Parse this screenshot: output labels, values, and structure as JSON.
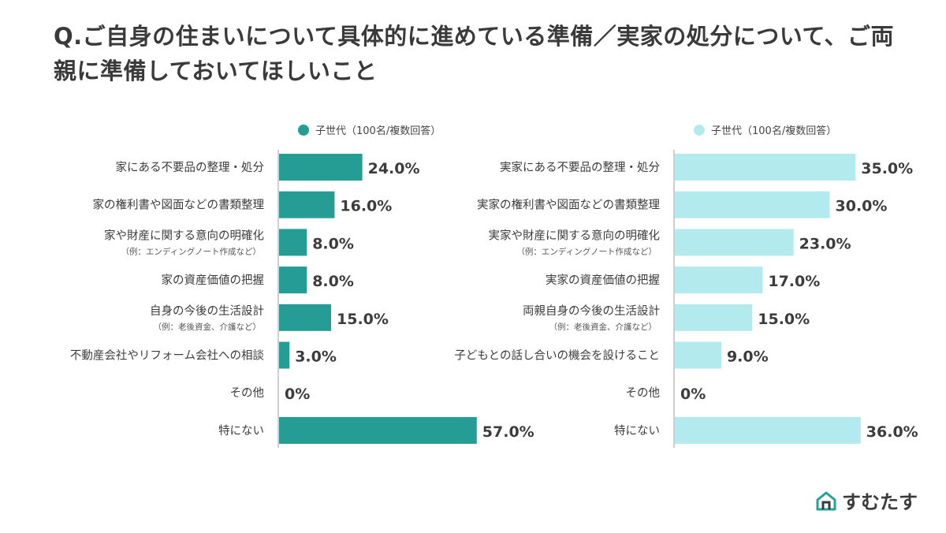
{
  "title": "Q.ご自身の住まいについて具体的に進めている準備／実家の処分について、ご両親に準備しておいてほしいこと",
  "brand": {
    "name": "すむたす",
    "icon": "house-logo-icon",
    "color": "#22a39a"
  },
  "chart_data": [
    {
      "type": "bar",
      "orientation": "horizontal",
      "legend": "子世代（100名/複数回答）",
      "color": "#259c94",
      "categories": [
        {
          "label": "家にある不要品の整理・処分",
          "sub": ""
        },
        {
          "label": "家の権利書や図面などの書類整理",
          "sub": ""
        },
        {
          "label": "家や財産に関する意向の明確化",
          "sub": "（例：エンディングノート作成など）"
        },
        {
          "label": "家の資産価値の把握",
          "sub": ""
        },
        {
          "label": "自身の今後の生活設計",
          "sub": "（例：老後資金、介護など）"
        },
        {
          "label": "不動産会社やリフォーム会社への相談",
          "sub": ""
        },
        {
          "label": "その他",
          "sub": ""
        },
        {
          "label": "特にない",
          "sub": ""
        }
      ],
      "values": [
        24.0,
        16.0,
        8.0,
        8.0,
        15.0,
        3.0,
        0,
        57.0
      ],
      "value_labels": [
        "24.0%",
        "16.0%",
        "8.0%",
        "8.0%",
        "15.0%",
        "3.0%",
        "0%",
        "57.0%"
      ],
      "xlim": [
        0,
        100
      ]
    },
    {
      "type": "bar",
      "orientation": "horizontal",
      "legend": "子世代（100名/複数回答）",
      "color": "#b3eaee",
      "categories": [
        {
          "label": "実家にある不要品の整理・処分",
          "sub": ""
        },
        {
          "label": "実家の権利書や図面などの書類整理",
          "sub": ""
        },
        {
          "label": "実家や財産に関する意向の明確化",
          "sub": "（例：エンディングノート作成など）"
        },
        {
          "label": "実家の資産価値の把握",
          "sub": ""
        },
        {
          "label": "両親自身の今後の生活設計",
          "sub": "（例：老後資金、介護など）"
        },
        {
          "label": "子どもとの話し合いの機会を設けること",
          "sub": ""
        },
        {
          "label": "その他",
          "sub": ""
        },
        {
          "label": "特にない",
          "sub": ""
        }
      ],
      "values": [
        35.0,
        30.0,
        23.0,
        17.0,
        15.0,
        9.0,
        0,
        36.0
      ],
      "value_labels": [
        "35.0%",
        "30.0%",
        "23.0%",
        "17.0%",
        "15.0%",
        "9.0%",
        "0%",
        "36.0%"
      ],
      "xlim": [
        0,
        100
      ]
    }
  ]
}
